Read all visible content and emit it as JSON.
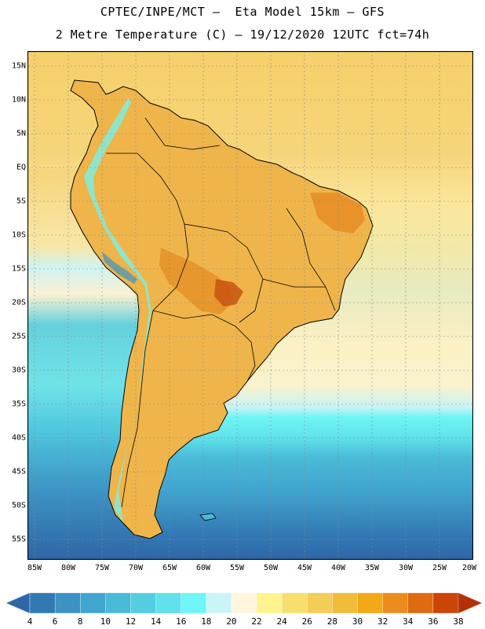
{
  "title": {
    "line1": "CPTEC/INPE/MCT –  Eta Model 15km – GFS",
    "line2": "2 Metre Temperature (C) – 19/12/2020 12UTC fct=74h"
  },
  "map": {
    "lon_range": [
      -86,
      -20
    ],
    "lat_range": [
      17,
      -58
    ],
    "lat_ticks": [
      "15N",
      "10N",
      "5N",
      "EQ",
      "5S",
      "10S",
      "15S",
      "20S",
      "25S",
      "30S",
      "35S",
      "40S",
      "45S",
      "50S",
      "55S"
    ],
    "lon_ticks": [
      "85W",
      "80W",
      "75W",
      "70W",
      "65W",
      "60W",
      "55W",
      "50W",
      "45W",
      "40W",
      "35W",
      "30W",
      "25W",
      "20W"
    ]
  },
  "colorbar": {
    "labels": [
      "4",
      "6",
      "8",
      "10",
      "12",
      "14",
      "16",
      "18",
      "20",
      "22",
      "24",
      "26",
      "28",
      "30",
      "32",
      "34",
      "36",
      "38"
    ],
    "colors": [
      "#2f66a6",
      "#3279b4",
      "#3c93c3",
      "#41a6cf",
      "#49bad8",
      "#54cde0",
      "#5fe2ea",
      "#6ff5f5",
      "#cbf4f8",
      "#fff6dd",
      "#fff38f",
      "#f7df6d",
      "#f3cd55",
      "#f1bc3a",
      "#f2a917",
      "#eb8c1d",
      "#df6a12",
      "#cb4507",
      "#b42f08"
    ]
  }
}
